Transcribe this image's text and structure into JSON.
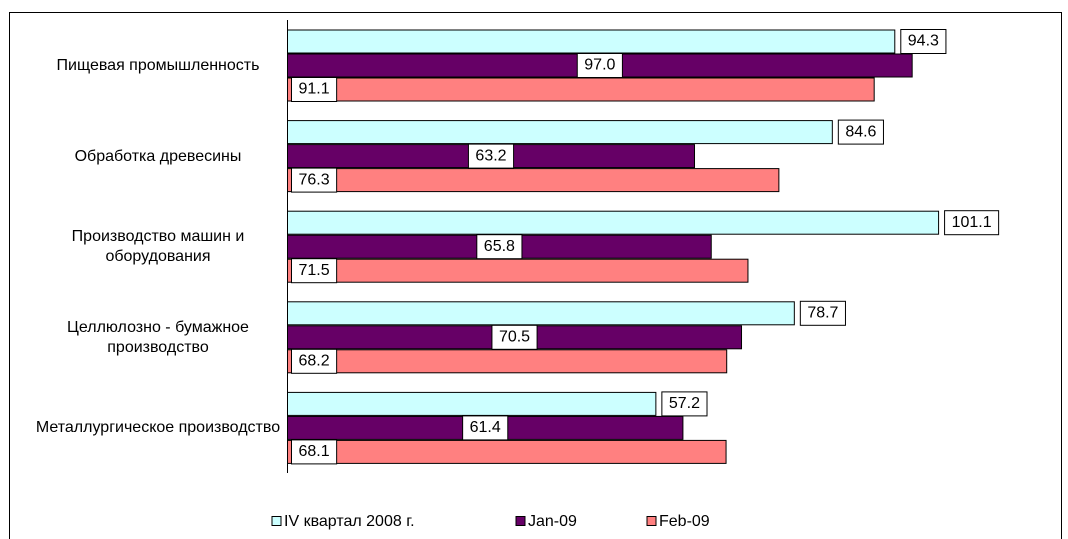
{
  "chart_data": {
    "type": "hbar",
    "categories": [
      "Пищевая промышленность",
      "Обработка древесины",
      "Производство машин и оборудования",
      "Целлюлозно - бумажное производство",
      "Металлургическое производство"
    ],
    "series": [
      {
        "name": "IV квартал 2008 г.",
        "color": "#ccffff",
        "values": [
          94.3,
          84.6,
          101.1,
          78.7,
          57.2
        ],
        "value_labels": [
          "94.3",
          "84.6",
          "101.1",
          "78.7",
          "57.2"
        ]
      },
      {
        "name": "Jan-09",
        "color": "#660066",
        "values": [
          97.0,
          63.2,
          65.8,
          70.5,
          61.4
        ],
        "value_labels": [
          "97.0",
          "63.2",
          "65.8",
          "70.5",
          "61.4"
        ]
      },
      {
        "name": "Feb-09",
        "color": "#ff8080",
        "values": [
          91.1,
          76.3,
          71.5,
          68.2,
          68.1
        ],
        "value_labels": [
          "91.1",
          "76.3",
          "71.5",
          "68.2",
          "68.1"
        ]
      }
    ]
  }
}
